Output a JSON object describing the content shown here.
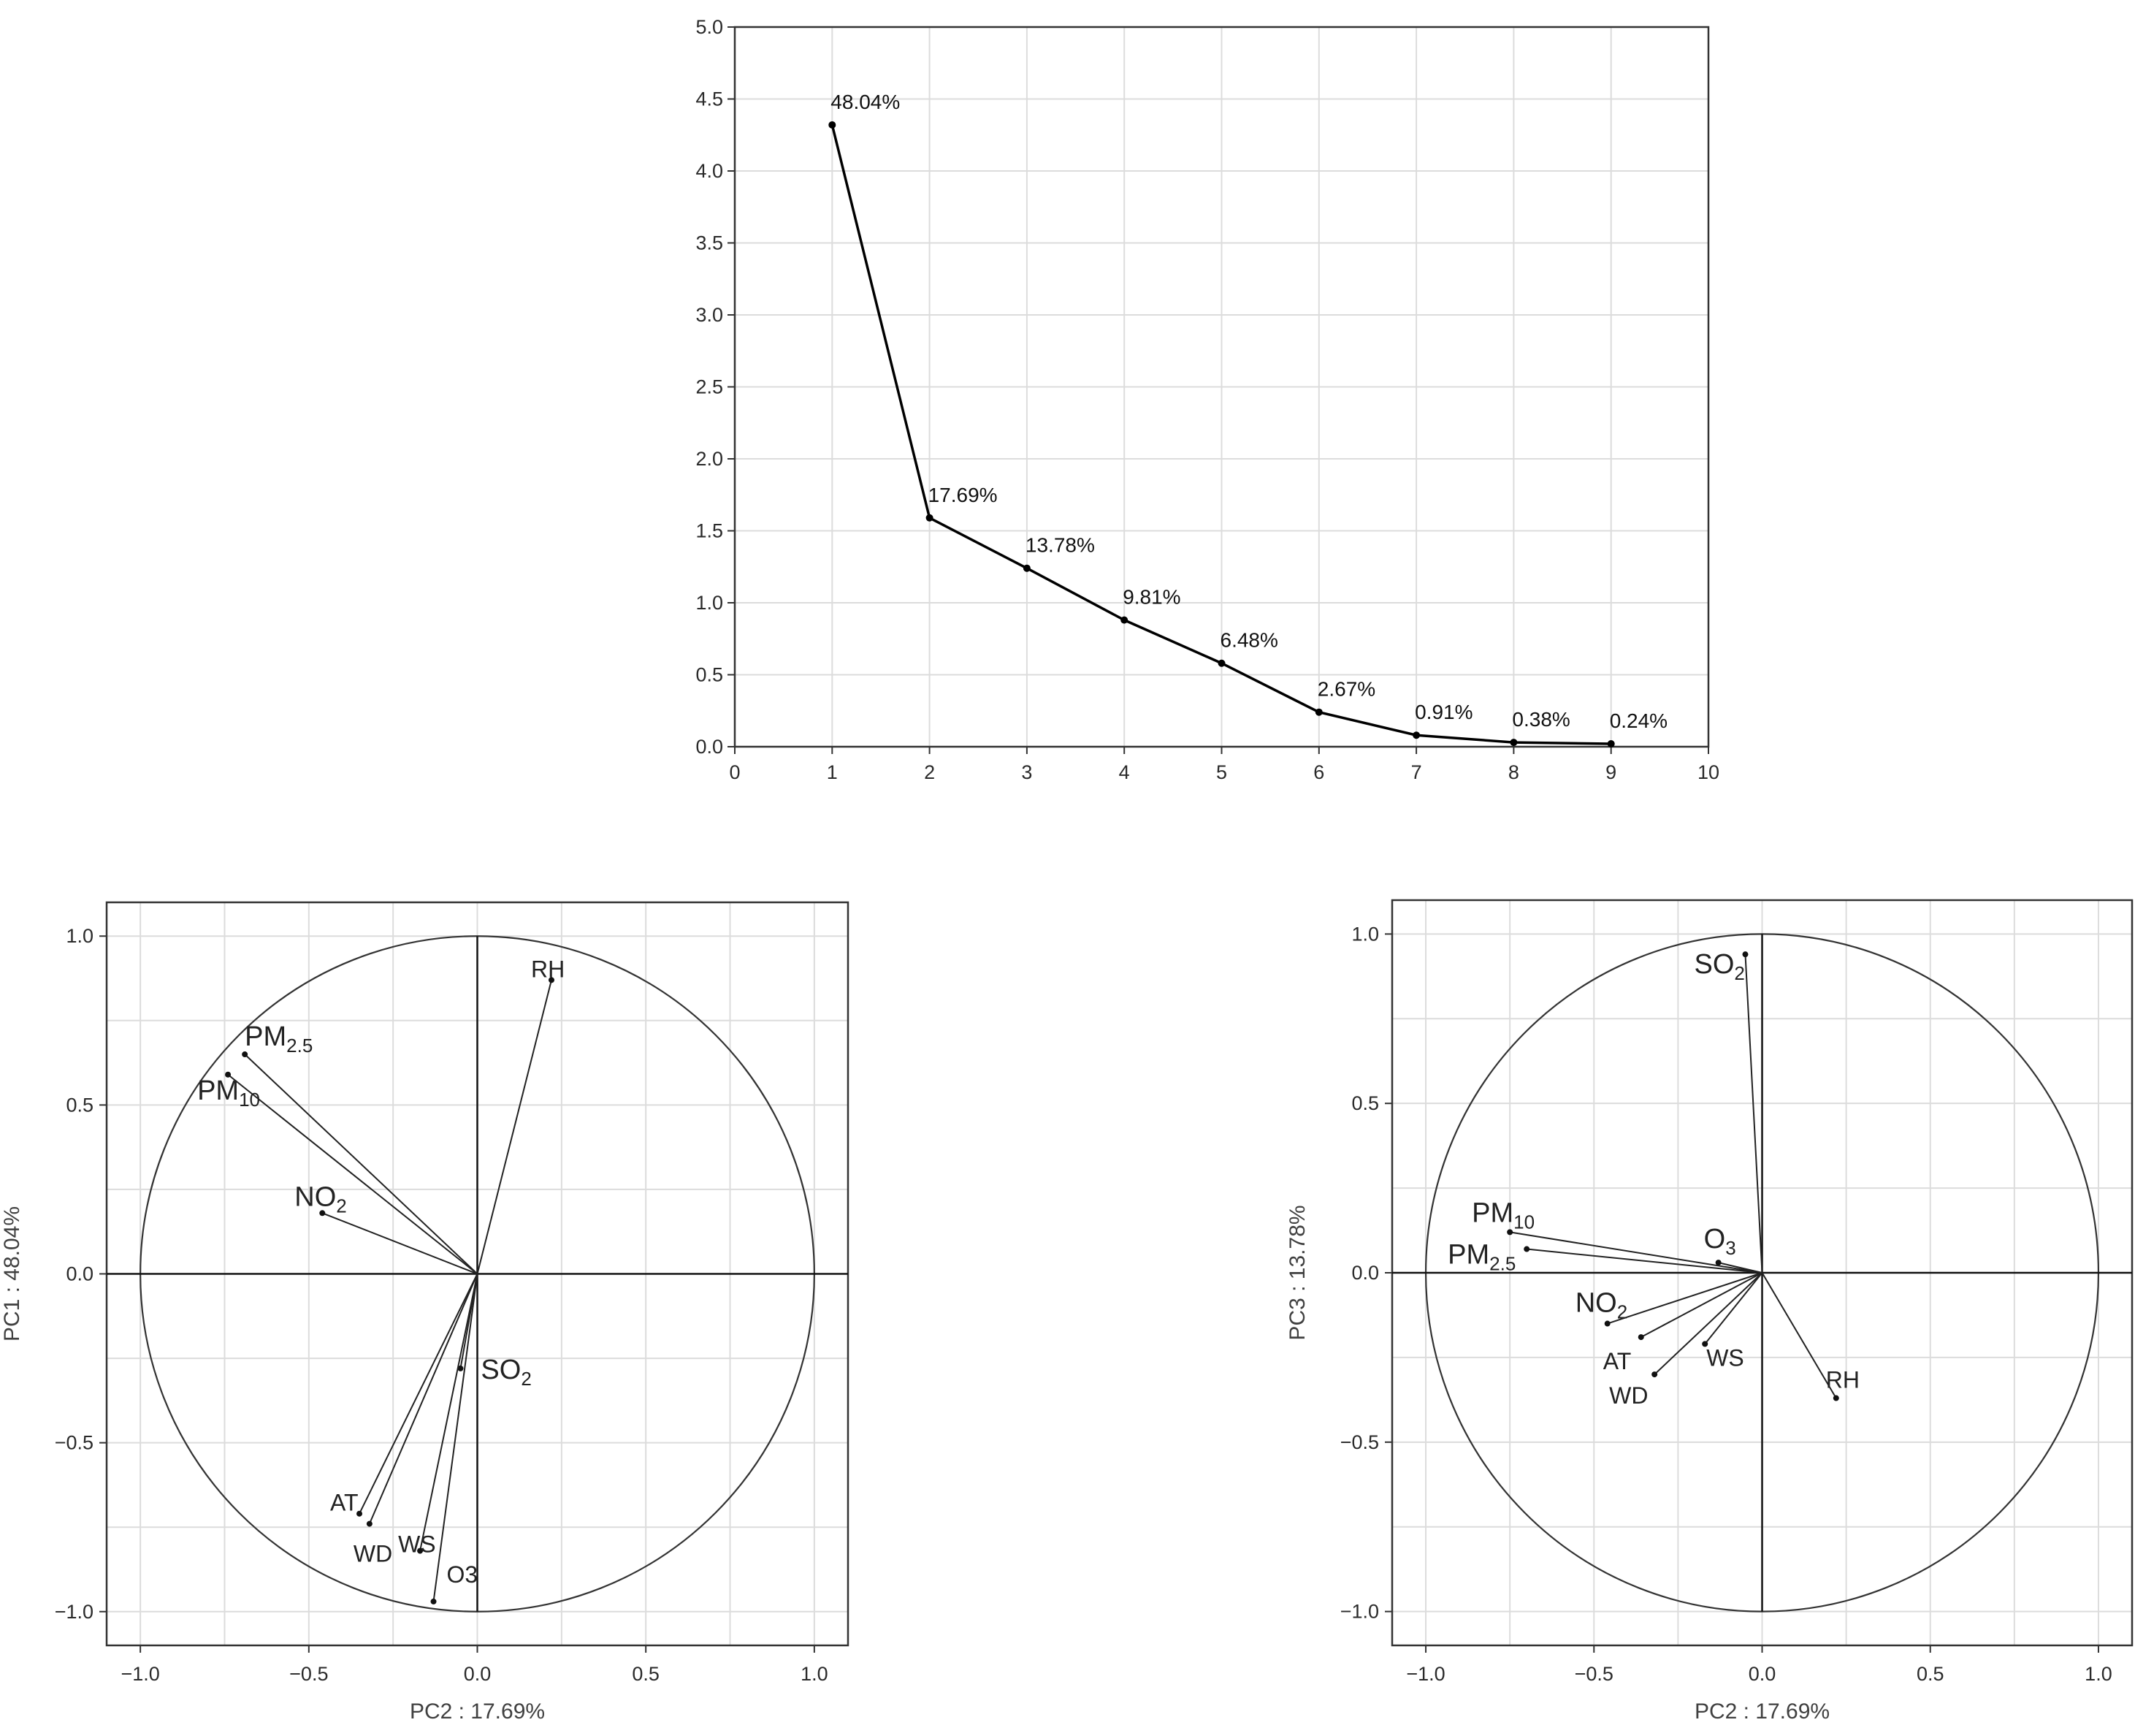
{
  "chart_data": [
    {
      "type": "line",
      "name": "scree",
      "x": [
        1,
        2,
        3,
        4,
        5,
        6,
        7,
        8,
        9
      ],
      "values": [
        4.32,
        1.59,
        1.24,
        0.88,
        0.58,
        0.24,
        0.08,
        0.03,
        0.02
      ],
      "point_labels": [
        "48.04%",
        "17.69%",
        "13.78%",
        "9.81%",
        "6.48%",
        "2.67%",
        "0.91%",
        "0.38%",
        "0.24%"
      ],
      "xlim": [
        0,
        10
      ],
      "ylim": [
        0,
        5
      ],
      "xticks": [
        "0",
        "1",
        "2",
        "3",
        "4",
        "5",
        "6",
        "7",
        "8",
        "9",
        "10"
      ],
      "yticks": [
        "0.0",
        "0.5",
        "1.0",
        "1.5",
        "2.0",
        "2.5",
        "3.0",
        "3.5",
        "4.0",
        "4.5",
        "5.0"
      ],
      "grid": true,
      "series_color": "#000000"
    },
    {
      "type": "scatter",
      "name": "loadings-pc2-pc1",
      "xlabel": "PC2 : 17.69%",
      "ylabel": "PC1 : 48.04%",
      "xlim": [
        -1.1,
        1.1
      ],
      "ylim": [
        -1.1,
        1.1
      ],
      "xticks": [
        "−1.0",
        "−0.5",
        "0.0",
        "0.5",
        "1.0"
      ],
      "yticks": [
        "−1.0",
        "−0.5",
        "0.0",
        "0.5",
        "1.0"
      ],
      "unit_circle": true,
      "grid": true,
      "vectors": [
        {
          "label": "RH",
          "sub": "",
          "x": 0.22,
          "y": 0.87
        },
        {
          "label": "PM",
          "sub": "2.5",
          "x": -0.69,
          "y": 0.65
        },
        {
          "label": "PM",
          "sub": "10",
          "x": -0.74,
          "y": 0.59
        },
        {
          "label": "NO",
          "sub": "2",
          "x": -0.46,
          "y": 0.18
        },
        {
          "label": "SO",
          "sub": "2",
          "x": -0.05,
          "y": -0.28
        },
        {
          "label": "AT",
          "sub": "",
          "x": -0.35,
          "y": -0.71
        },
        {
          "label": "WD",
          "sub": "",
          "x": -0.32,
          "y": -0.74
        },
        {
          "label": "WS",
          "sub": "",
          "x": -0.17,
          "y": -0.82
        },
        {
          "label": "O3",
          "sub": "",
          "x": -0.13,
          "y": -0.97
        }
      ]
    },
    {
      "type": "scatter",
      "name": "loadings-pc2-pc3",
      "xlabel": "PC2 : 17.69%",
      "ylabel": "PC3 : 13.78%",
      "xlim": [
        -1.1,
        1.1
      ],
      "ylim": [
        -1.1,
        1.1
      ],
      "xticks": [
        "−1.0",
        "−0.5",
        "0.0",
        "0.5",
        "1.0"
      ],
      "yticks": [
        "−1.0",
        "−0.5",
        "0.0",
        "0.5",
        "1.0"
      ],
      "unit_circle": true,
      "grid": true,
      "vectors": [
        {
          "label": "SO",
          "sub": "2",
          "x": -0.05,
          "y": 0.94
        },
        {
          "label": "PM",
          "sub": "10",
          "x": -0.75,
          "y": 0.12
        },
        {
          "label": "PM",
          "sub": "2.5",
          "x": -0.7,
          "y": 0.07
        },
        {
          "label": "O",
          "sub": "3",
          "x": -0.13,
          "y": 0.03
        },
        {
          "label": "NO",
          "sub": "2",
          "x": -0.46,
          "y": -0.15
        },
        {
          "label": "AT",
          "sub": "",
          "x": -0.36,
          "y": -0.19
        },
        {
          "label": "WD",
          "sub": "",
          "x": -0.32,
          "y": -0.3
        },
        {
          "label": "WS",
          "sub": "",
          "x": -0.17,
          "y": -0.21
        },
        {
          "label": "RH",
          "sub": "",
          "x": 0.22,
          "y": -0.37
        }
      ]
    }
  ]
}
